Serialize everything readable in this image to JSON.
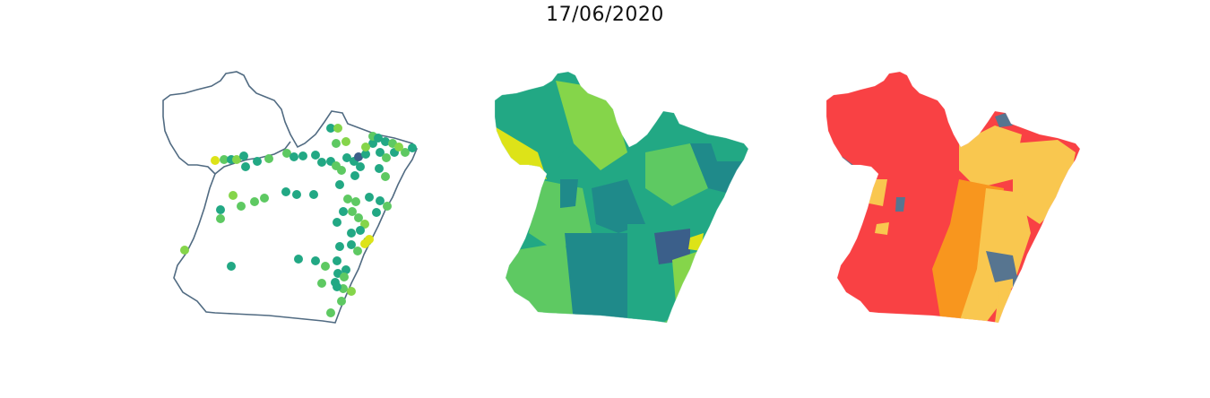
{
  "figure": {
    "title": "17/06/2020"
  },
  "colors": {
    "outline": "#516b82",
    "dark_blue": "#3b5f8a",
    "teal_dark": "#1f8a8a",
    "teal": "#22a884",
    "green": "#5ec962",
    "light_green": "#85d54a",
    "yellow": "#dde318",
    "red": "#f94144",
    "orange": "#f8961e",
    "gold": "#f9c74f",
    "slate": "#577590"
  },
  "panels": [
    {
      "name": "points-map",
      "type": "point-map"
    },
    {
      "name": "choropleth-viridis",
      "type": "choropleth"
    },
    {
      "name": "choropleth-risk",
      "type": "choropleth"
    }
  ]
}
